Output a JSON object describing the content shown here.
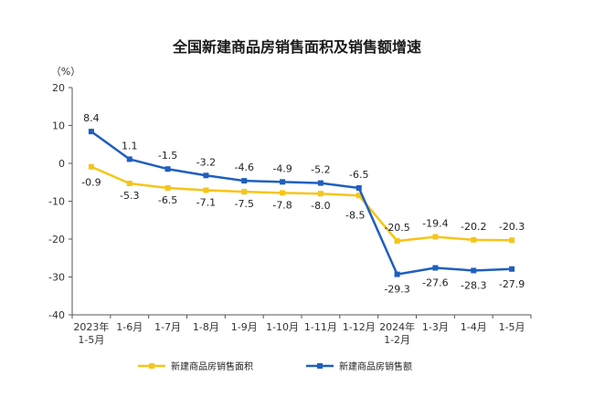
{
  "chart_data": {
    "type": "line",
    "title": "全国新建商品房销售面积及销售额增速",
    "unit_label": "（%）",
    "ylim": [
      -40,
      20
    ],
    "yticks": [
      -40,
      -30,
      -20,
      -10,
      0,
      10,
      20
    ],
    "categories": [
      [
        "2023年",
        "1-5月"
      ],
      [
        "1-6月"
      ],
      [
        "1-7月"
      ],
      [
        "1-8月"
      ],
      [
        "1-9月"
      ],
      [
        "1-10月"
      ],
      [
        "1-11月"
      ],
      [
        "1-12月"
      ],
      [
        "2024年",
        "1-2月"
      ],
      [
        "1-3月"
      ],
      [
        "1-4月"
      ],
      [
        "1-5月"
      ]
    ],
    "series": [
      {
        "name": "新建商品房销售面积",
        "color": "#F5C518",
        "values": [
          -0.9,
          -5.3,
          -6.5,
          -7.1,
          -7.5,
          -7.8,
          -8.0,
          -8.5,
          -20.5,
          -19.4,
          -20.2,
          -20.3
        ],
        "labels": [
          "-0.9",
          "-5.3",
          "-6.5",
          "-7.1",
          "-7.5",
          "-7.8",
          "-8.0",
          "-8.5",
          "-20.5",
          "-19.4",
          "-20.2",
          "-20.3"
        ]
      },
      {
        "name": "新建商品房销售额",
        "color": "#1F5FBF",
        "values": [
          8.4,
          1.1,
          -1.5,
          -3.2,
          -4.6,
          -4.9,
          -5.2,
          -6.5,
          -29.3,
          -27.6,
          -28.3,
          -27.9
        ],
        "labels": [
          "8.4",
          "1.1",
          "-1.5",
          "-3.2",
          "-4.6",
          "-4.9",
          "-5.2",
          "-6.5",
          "-29.3",
          "-27.6",
          "-28.3",
          "-27.9"
        ]
      }
    ],
    "grid": false,
    "legend_position": "bottom"
  }
}
